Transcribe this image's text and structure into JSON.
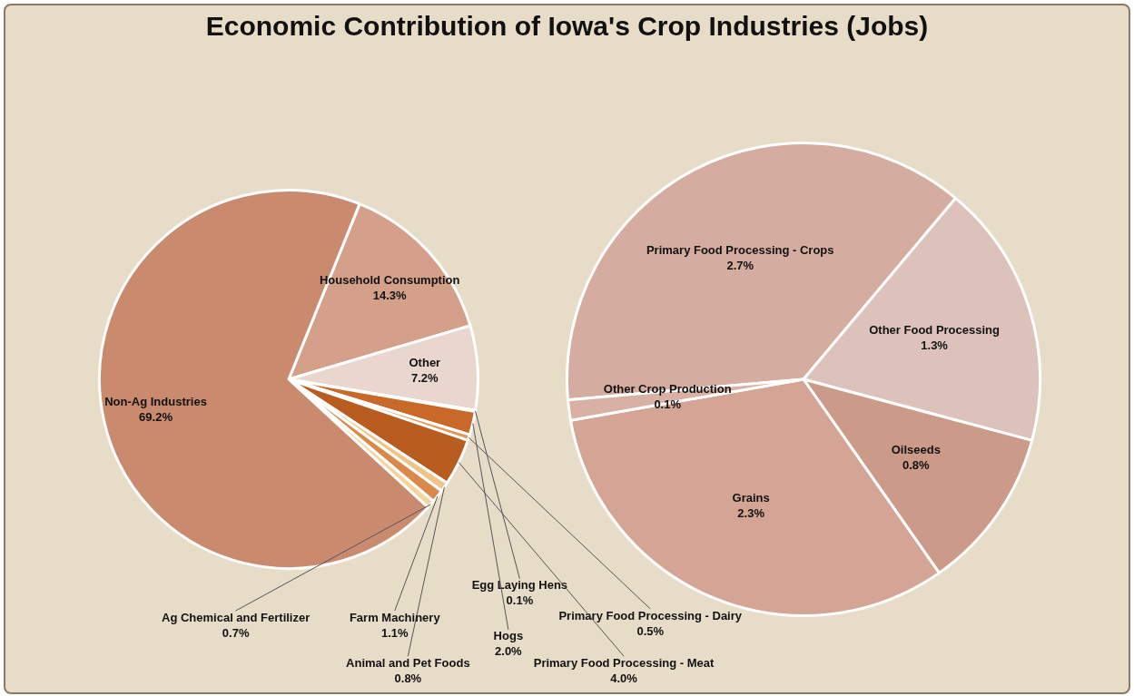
{
  "chart_data": [
    {
      "type": "pie",
      "title": "Economic Contribution of Iowa's Crop Industries (Jobs)",
      "categories": [
        "Household Consumption",
        "Other",
        "Egg Laying Hens",
        "Hogs",
        "Primary Food Processing - Dairy",
        "Primary Food Processing - Meat",
        "Animal and Pet Foods",
        "Farm Machinery",
        "Ag Chemical and Fertilizer",
        "Non-Ag Industries"
      ],
      "values": [
        14.3,
        7.2,
        0.1,
        2.0,
        0.5,
        4.0,
        0.8,
        1.1,
        0.7,
        69.2
      ],
      "value_labels": [
        "14.3%",
        "7.2%",
        "0.1%",
        "2.0%",
        "0.5%",
        "4.0%",
        "0.8%",
        "1.1%",
        "0.7%",
        "69.2%"
      ],
      "colors": [
        "#d4a08a",
        "#e8d6cf",
        "#e9b47a",
        "#c8692a",
        "#e09a58",
        "#b85c20",
        "#f0c488",
        "#d98a4a",
        "#f4d49c",
        "#c98a6e"
      ],
      "legend": false
    },
    {
      "type": "pie",
      "categories": [
        "Primary Food Processing - Crops",
        "Other Food Processing",
        "Oilseeds",
        "Grains",
        "Other Crop Production"
      ],
      "values": [
        2.7,
        1.3,
        0.8,
        2.3,
        0.1
      ],
      "value_labels": [
        "2.7%",
        "1.3%",
        "0.8%",
        "2.3%",
        "0.1%"
      ],
      "colors": [
        "#d4aca0",
        "#dcc2ba",
        "#cc9a88",
        "#d4a494",
        "#d8b0a4"
      ],
      "legend": false
    }
  ]
}
